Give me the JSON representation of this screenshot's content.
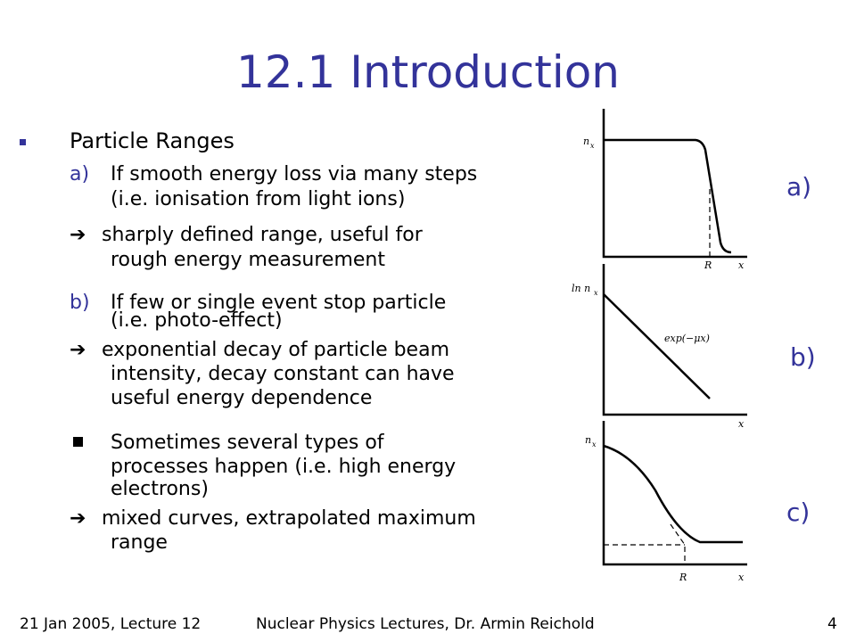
{
  "slide": {
    "title": "12.1 Introduction",
    "heading": "Particle Ranges",
    "items": [
      {
        "marker": "a)",
        "lines": [
          "If smooth energy loss via many steps",
          "(i.e. ionisation from light ions)"
        ]
      },
      {
        "arrow_lines": [
          "sharply defined range, useful for",
          "rough energy measurement"
        ]
      },
      {
        "marker": "b)",
        "lines": [
          "If few or single event stop particle",
          "(i.e. photo-effect)"
        ]
      },
      {
        "arrow_lines": [
          "exponential decay of particle beam",
          "intensity, decay constant can have",
          "useful energy dependence"
        ]
      },
      {
        "lines": [
          "Sometimes several types of",
          "processes happen (i.e. high energy",
          "electrons)"
        ]
      },
      {
        "arrow_lines": [
          "mixed curves, extrapolated maximum",
          "range"
        ]
      }
    ],
    "arrow_glyph": "➔"
  },
  "figures": [
    {
      "label": "a)",
      "y_label": "n",
      "y_sub": "x",
      "x_label": "x",
      "mark": "R"
    },
    {
      "label": "b)",
      "y_label": "ln n",
      "y_sub": "x",
      "x_label": "x",
      "annotation": "exp(−μx)"
    },
    {
      "label": "c)",
      "y_label": "n",
      "y_sub": "x",
      "x_label": "x",
      "mark": "R"
    }
  ],
  "footer": {
    "left": "21 Jan 2005, Lecture 12",
    "center": "Nuclear Physics  Lectures, Dr. Armin Reichold",
    "page": "4"
  },
  "colors": {
    "accent": "#33339a",
    "text": "#000000",
    "background": "#ffffff"
  }
}
